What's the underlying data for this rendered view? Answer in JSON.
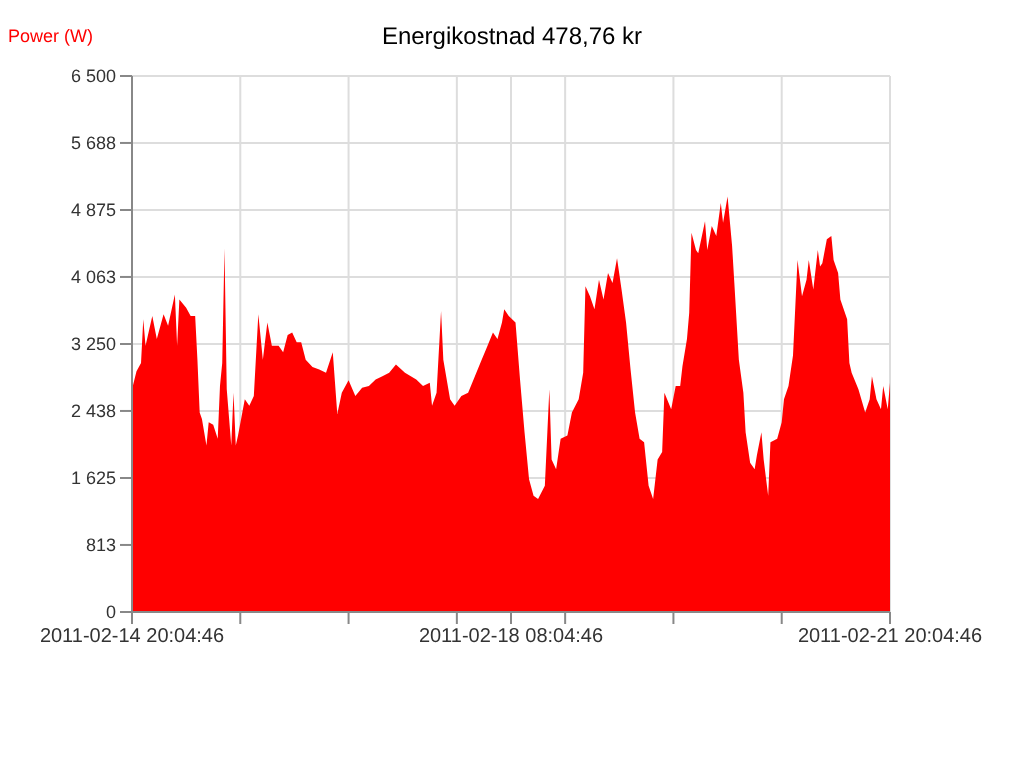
{
  "chart_data": {
    "type": "area",
    "title": "Energikostnad 478,76 kr",
    "ylabel": "Power (W)",
    "color": "#ff0000",
    "grid": true,
    "xlim": [
      "2011-02-14T20:04",
      "2011-02-21T20:04"
    ],
    "xticks": [
      {
        "value": "2011-02-14T20:04",
        "label": "2011-02-14 20:04:46"
      },
      {
        "value": "2011-02-15T20:04",
        "label": null
      },
      {
        "value": "2011-02-16T20:04",
        "label": null
      },
      {
        "value": "2011-02-17T20:04",
        "label": null
      },
      {
        "value": "2011-02-18T08:04",
        "label": "2011-02-18 08:04:46"
      },
      {
        "value": "2011-02-18T20:04",
        "label": null
      },
      {
        "value": "2011-02-19T20:04",
        "label": null
      },
      {
        "value": "2011-02-20T20:04",
        "label": null
      },
      {
        "value": "2011-02-21T20:04",
        "label": "2011-02-21 20:04:46"
      }
    ],
    "ylim": [
      0,
      6500
    ],
    "yticks": [
      0,
      813,
      {
        "value": 1625,
        "label": "1 625"
      },
      {
        "value": 2438,
        "label": "2 438"
      },
      {
        "value": 3250,
        "label": "3 250"
      },
      {
        "value": 4063,
        "label": "4 063"
      },
      {
        "value": 4875,
        "label": "4 875"
      },
      {
        "value": 5688,
        "label": "5 688"
      },
      {
        "value": 6500,
        "label": "6 500"
      }
    ],
    "x": [
      "2011-02-14T20:04",
      "2011-02-14T21:04",
      "2011-02-14T22:04",
      "2011-02-14T22:34",
      "2011-02-14T23:04",
      "2011-02-15T00:34",
      "2011-02-15T01:34",
      "2011-02-15T03:04",
      "2011-02-15T04:04",
      "2011-02-15T05:34",
      "2011-02-15T06:04",
      "2011-02-15T06:34",
      "2011-02-15T08:04",
      "2011-02-15T09:04",
      "2011-02-15T10:04",
      "2011-02-15T10:34",
      "2011-02-15T11:04",
      "2011-02-15T11:34",
      "2011-02-15T12:34",
      "2011-02-15T13:04",
      "2011-02-15T14:04",
      "2011-02-15T15:04",
      "2011-02-15T15:34",
      "2011-02-15T16:04",
      "2011-02-15T16:34",
      "2011-02-15T17:04",
      "2011-02-15T18:04",
      "2011-02-15T18:34",
      "2011-02-15T19:04",
      "2011-02-15T19:34",
      "2011-02-15T21:04",
      "2011-02-15T22:04",
      "2011-02-15T23:04",
      "2011-02-16T00:04",
      "2011-02-16T01:04",
      "2011-02-16T02:04",
      "2011-02-16T03:04",
      "2011-02-16T04:34",
      "2011-02-16T05:34",
      "2011-02-16T06:34",
      "2011-02-16T07:34",
      "2011-02-16T08:34",
      "2011-02-16T09:34",
      "2011-02-16T10:34",
      "2011-02-16T12:04",
      "2011-02-16T13:34",
      "2011-02-16T15:04",
      "2011-02-16T16:34",
      "2011-02-16T17:34",
      "2011-02-16T18:34",
      "2011-02-16T20:04",
      "2011-02-16T21:34",
      "2011-02-16T23:04",
      "2011-02-17T00:34",
      "2011-02-17T02:04",
      "2011-02-17T03:34",
      "2011-02-17T05:04",
      "2011-02-17T06:34",
      "2011-02-17T08:34",
      "2011-02-17T11:04",
      "2011-02-17T12:34",
      "2011-02-17T14:04",
      "2011-02-17T14:34",
      "2011-02-17T15:34",
      "2011-02-17T16:34",
      "2011-02-17T17:04",
      "2011-02-17T18:34",
      "2011-02-17T19:34",
      "2011-02-17T21:04",
      "2011-02-17T22:34",
      "2011-02-18T00:04",
      "2011-02-18T01:34",
      "2011-02-18T02:34",
      "2011-02-18T04:04",
      "2011-02-18T05:04",
      "2011-02-18T06:04",
      "2011-02-18T06:34",
      "2011-02-18T07:34",
      "2011-02-18T09:04",
      "2011-02-18T10:04",
      "2011-02-18T11:04",
      "2011-02-18T12:04",
      "2011-02-18T13:04",
      "2011-02-18T14:04",
      "2011-02-18T15:34",
      "2011-02-18T16:34",
      "2011-02-18T17:04",
      "2011-02-18T18:04",
      "2011-02-18T19:04",
      "2011-02-18T20:34",
      "2011-02-18T21:34",
      "2011-02-18T23:04",
      "2011-02-19T00:04",
      "2011-02-19T00:34",
      "2011-02-19T01:34",
      "2011-02-19T02:34",
      "2011-02-19T03:34",
      "2011-02-19T04:34",
      "2011-02-19T05:34",
      "2011-02-19T06:34",
      "2011-02-19T07:34",
      "2011-02-19T08:34",
      "2011-02-19T09:34",
      "2011-02-19T10:34",
      "2011-02-19T11:34",
      "2011-02-19T12:34",
      "2011-02-19T13:34",
      "2011-02-19T14:34",
      "2011-02-19T15:34",
      "2011-02-19T16:34",
      "2011-02-19T17:34",
      "2011-02-19T18:04",
      "2011-02-19T19:34",
      "2011-02-19T20:34",
      "2011-02-19T21:34",
      "2011-02-19T22:04",
      "2011-02-19T23:04",
      "2011-02-19T23:34",
      "2011-02-20T00:04",
      "2011-02-20T01:04",
      "2011-02-20T01:34",
      "2011-02-20T03:04",
      "2011-02-20T03:34",
      "2011-02-20T04:34",
      "2011-02-20T05:34",
      "2011-02-20T06:34",
      "2011-02-20T07:04",
      "2011-02-20T08:04",
      "2011-02-20T09:04",
      "2011-02-20T09:34",
      "2011-02-20T10:34",
      "2011-02-20T11:34",
      "2011-02-20T12:04",
      "2011-02-20T13:04",
      "2011-02-20T14:04",
      "2011-02-20T14:34",
      "2011-02-20T15:34",
      "2011-02-20T16:04",
      "2011-02-20T17:04",
      "2011-02-20T17:34",
      "2011-02-20T19:04",
      "2011-02-20T20:04",
      "2011-02-20T20:34",
      "2011-02-20T21:34",
      "2011-02-20T22:34",
      "2011-02-20T23:34",
      "2011-02-21T00:34",
      "2011-02-21T01:34",
      "2011-02-21T02:04",
      "2011-02-21T03:04",
      "2011-02-21T04:04",
      "2011-02-21T04:34",
      "2011-02-21T05:04",
      "2011-02-21T06:04",
      "2011-02-21T07:04",
      "2011-02-21T07:34",
      "2011-02-21T08:34",
      "2011-02-21T09:04",
      "2011-02-21T10:34",
      "2011-02-21T11:04",
      "2011-02-21T11:34",
      "2011-02-21T13:04",
      "2011-02-21T14:34",
      "2011-02-21T15:34",
      "2011-02-21T16:04",
      "2011-02-21T17:04",
      "2011-02-21T18:04",
      "2011-02-21T18:34",
      "2011-02-21T19:34",
      "2011-02-21T20:04"
    ],
    "values": [
      2700,
      2920,
      3020,
      3550,
      3230,
      3590,
      3310,
      3610,
      3470,
      3850,
      3230,
      3790,
      3690,
      3590,
      3590,
      3060,
      2420,
      2340,
      2020,
      2300,
      2270,
      2100,
      2740,
      3020,
      4410,
      2700,
      2020,
      2660,
      2020,
      2140,
      2580,
      2500,
      2620,
      3610,
      3060,
      3510,
      3230,
      3230,
      3150,
      3360,
      3390,
      3270,
      3270,
      3060,
      2970,
      2940,
      2900,
      3150,
      2400,
      2660,
      2810,
      2620,
      2720,
      2740,
      2820,
      2860,
      2900,
      3000,
      2900,
      2820,
      2740,
      2780,
      2500,
      2660,
      3650,
      3060,
      2580,
      2500,
      2620,
      2660,
      2860,
      3060,
      3190,
      3390,
      3310,
      3510,
      3670,
      3590,
      3510,
      2820,
      2180,
      1610,
      1410,
      1370,
      1530,
      2700,
      1850,
      1730,
      2100,
      2140,
      2420,
      2580,
      2900,
      3950,
      3830,
      3670,
      4030,
      3790,
      4110,
      3990,
      4290,
      3910,
      3510,
      2940,
      2420,
      2100,
      2060,
      1530,
      1370,
      1850,
      1940,
      2660,
      2460,
      2740,
      2740,
      2980,
      3310,
      3630,
      4600,
      4390,
      4350,
      4740,
      4390,
      4680,
      4560,
      4960,
      4720,
      5040,
      4440,
      3990,
      3060,
      2660,
      2180,
      1810,
      1730,
      1900,
      2180,
      1850,
      1410,
      2060,
      2100,
      2300,
      2580,
      2740,
      3110,
      4270,
      3830,
      4030,
      4270,
      3910,
      4390,
      4190,
      4230,
      4520,
      4560,
      4270,
      4110,
      3790,
      3550,
      3020,
      2900,
      2700,
      2420,
      2580,
      2860,
      2580,
      2460,
      2740,
      2460,
      2780
    ]
  }
}
